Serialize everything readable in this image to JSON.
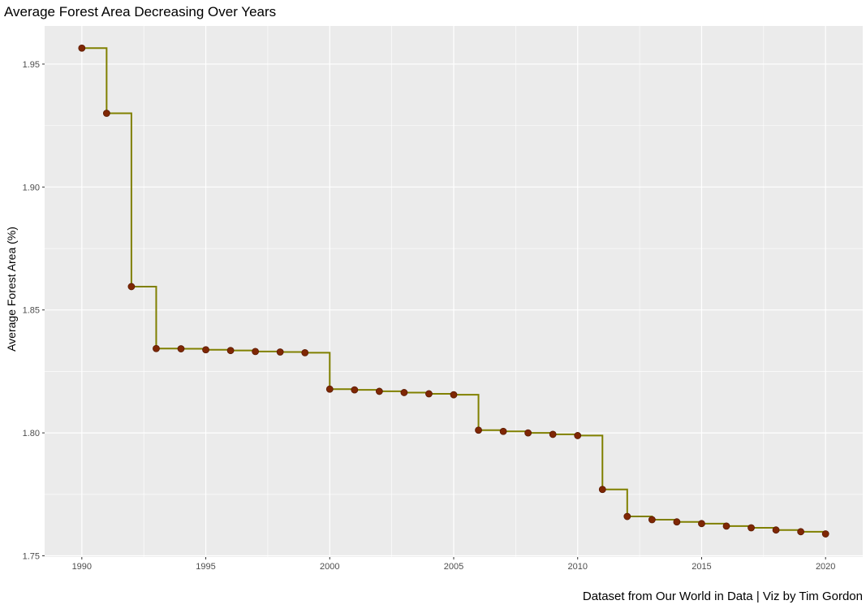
{
  "chart_data": {
    "type": "line",
    "title": "Average Forest Area Decreasing Over Years",
    "xlabel": "",
    "ylabel": "Average Forest Area (%)",
    "caption": "Dataset from Our World in Data | Viz by Tim Gordon",
    "x_ticks": [
      "1990",
      "1995",
      "2000",
      "2005",
      "2010",
      "2015",
      "2020"
    ],
    "y_ticks": [
      "1.75",
      "1.80",
      "1.85",
      "1.90",
      "1.95"
    ],
    "xlim": [
      1988.5,
      2021.5
    ],
    "ylim": [
      1.7495,
      1.9655
    ],
    "grid": true,
    "step": "hv",
    "series": [
      {
        "x": [
          1990,
          1991,
          1992,
          1993,
          1994,
          1995,
          1996,
          1997,
          1998,
          1999,
          2000,
          2001,
          2002,
          2003,
          2004,
          2005,
          2006,
          2007,
          2008,
          2009,
          2010,
          2011,
          2012,
          2013,
          2014,
          2015,
          2016,
          2017,
          2018,
          2019,
          2020
        ],
        "y": [
          1.9565,
          1.93,
          1.8595,
          1.8343,
          1.8342,
          1.8338,
          1.8335,
          1.8331,
          1.8329,
          1.8326,
          1.8178,
          1.8175,
          1.8169,
          1.8164,
          1.8159,
          1.8155,
          1.8011,
          1.8006,
          1.8,
          1.7994,
          1.7989,
          1.777,
          1.766,
          1.7647,
          1.7638,
          1.7631,
          1.7621,
          1.7614,
          1.7605,
          1.7598,
          1.7589
        ]
      }
    ],
    "colors": {
      "line": "#808000",
      "point": "#7f2704",
      "panel": "#ebebeb",
      "grid": "#ffffff"
    }
  }
}
